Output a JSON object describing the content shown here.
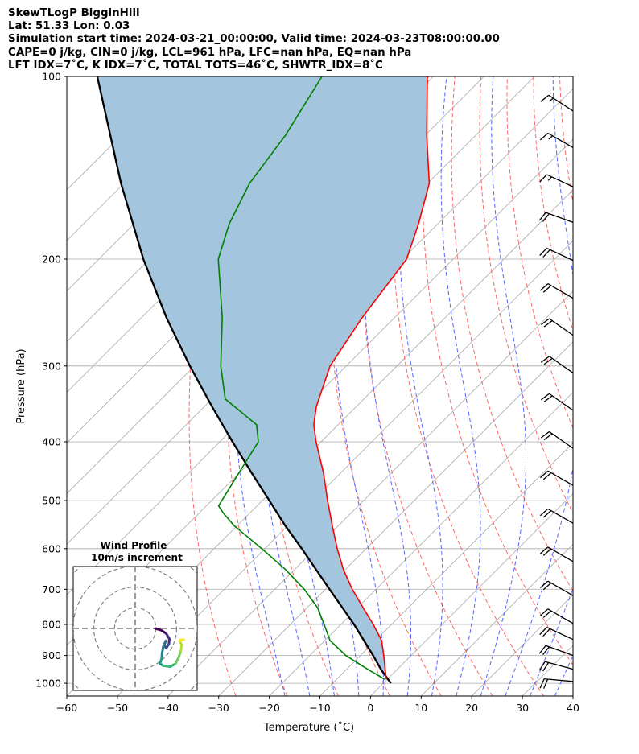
{
  "header": {
    "line1": "SkewTLogP BigginHill",
    "line2": "Lat: 51.33   Lon: 0.03",
    "line3": "Simulation start time: 2024-03-21_00:00:00, Valid time: 2024-03-23T08:00:00.00",
    "line4": "CAPE=0 j/kg, CIN=0 j/kg, LCL=961 hPa, LFC=nan hPa, EQ=nan hPa",
    "line5": "LFT IDX=7˚C, K IDX=7˚C, TOTAL TOTS=46˚C, SHWTR_IDX=8˚C"
  },
  "chart_data": {
    "type": "line",
    "xlabel": "Temperature (˚C)",
    "ylabel": "Pressure (hPa)",
    "xlim": [
      -60,
      40
    ],
    "ylim": [
      1050,
      100
    ],
    "xticks": [
      "−60",
      "−50",
      "−40",
      "−30",
      "−20",
      "−10",
      "0",
      "10",
      "20",
      "30",
      "40"
    ],
    "xtick_values": [
      -60,
      -50,
      -40,
      -30,
      -20,
      -10,
      0,
      10,
      20,
      30,
      40
    ],
    "yticks": [
      100,
      200,
      300,
      400,
      500,
      600,
      700,
      800,
      900,
      1000
    ],
    "colors": {
      "temperature": "#ff0000",
      "dewpoint": "#008000",
      "parcel": "#000000",
      "cape_fill": "#a3c5de",
      "isotherm": "#aaaaaa",
      "dry_adiabat": "#ff6666",
      "moist_adiabat": "#5566ff"
    },
    "series": [
      {
        "name": "temperature",
        "p": [
          985,
          950,
          900,
          850,
          800,
          750,
          700,
          650,
          600,
          550,
          500,
          450,
          400,
          375,
          350,
          300,
          250,
          200,
          175,
          150,
          125,
          100
        ],
        "T": [
          -0.2,
          -2.3,
          -5.4,
          -8.8,
          -13.6,
          -19.0,
          -24.7,
          -30.3,
          -35.7,
          -41.2,
          -47.1,
          -53.4,
          -61.0,
          -64.8,
          -67.9,
          -73.2,
          -76.4,
          -79.2,
          -83.8,
          -89.7,
          -99.7,
          -111.2
        ]
      },
      {
        "name": "dewpoint",
        "p": [
          985,
          950,
          900,
          850,
          800,
          750,
          700,
          650,
          600,
          550,
          525,
          510,
          450,
          400,
          375,
          340,
          300,
          250,
          200,
          175,
          150,
          125,
          100
        ],
        "T": [
          -0.5,
          -5.6,
          -12.9,
          -19.0,
          -23.3,
          -28.0,
          -34.2,
          -41.7,
          -50.6,
          -60.6,
          -65.1,
          -67.6,
          -70.1,
          -72.4,
          -76.1,
          -87.4,
          -94.8,
          -104.0,
          -116.4,
          -121.2,
          -125.2,
          -127.6,
          -132.0
        ]
      },
      {
        "name": "parcel",
        "p": [
          1000,
          950,
          900,
          850,
          800,
          750,
          700,
          650,
          600,
          550,
          500,
          450,
          400,
          350,
          300,
          250,
          200,
          150,
          100
        ],
        "T": [
          1.5,
          -3.1,
          -7.5,
          -12.3,
          -17.4,
          -23.1,
          -29.2,
          -35.7,
          -42.7,
          -50.5,
          -58.6,
          -67.6,
          -77.5,
          -88.5,
          -100.9,
          -115.0,
          -131.2,
          -150.6,
          -176.4
        ]
      }
    ],
    "wind_barbs": {
      "p": [
        114,
        131,
        152,
        174,
        201,
        232,
        267,
        308,
        355,
        410,
        472,
        545,
        630,
        717,
        797,
        847,
        900,
        948,
        993
      ],
      "direction_deg": [
        303,
        300,
        295,
        290,
        295,
        300,
        305,
        305,
        305,
        305,
        300,
        300,
        300,
        300,
        300,
        295,
        290,
        285,
        275
      ],
      "speed_kt": [
        15,
        15,
        15,
        20,
        20,
        20,
        20,
        20,
        20,
        20,
        20,
        20,
        20,
        20,
        20,
        20,
        20,
        20,
        20
      ]
    },
    "hodograph": {
      "title": "Wind Profile",
      "subtitle": "10m/s increment",
      "ring_speeds_ms": [
        10,
        20,
        30
      ],
      "u": [
        9.7,
        12.5,
        15,
        16.5,
        16.3,
        15,
        14,
        14.8,
        13.5,
        13,
        12.8,
        12,
        13.5,
        17,
        19.5,
        21,
        22,
        22.5,
        21.5,
        22,
        23.5
      ],
      "v": [
        0,
        -0.8,
        -2.5,
        -5,
        -7.5,
        -9.5,
        -8,
        -6,
        -9,
        -12,
        -14.5,
        -17,
        -18,
        -18.5,
        -17,
        -14,
        -11,
        -8,
        -6,
        -5.5,
        -5.5
      ]
    }
  }
}
